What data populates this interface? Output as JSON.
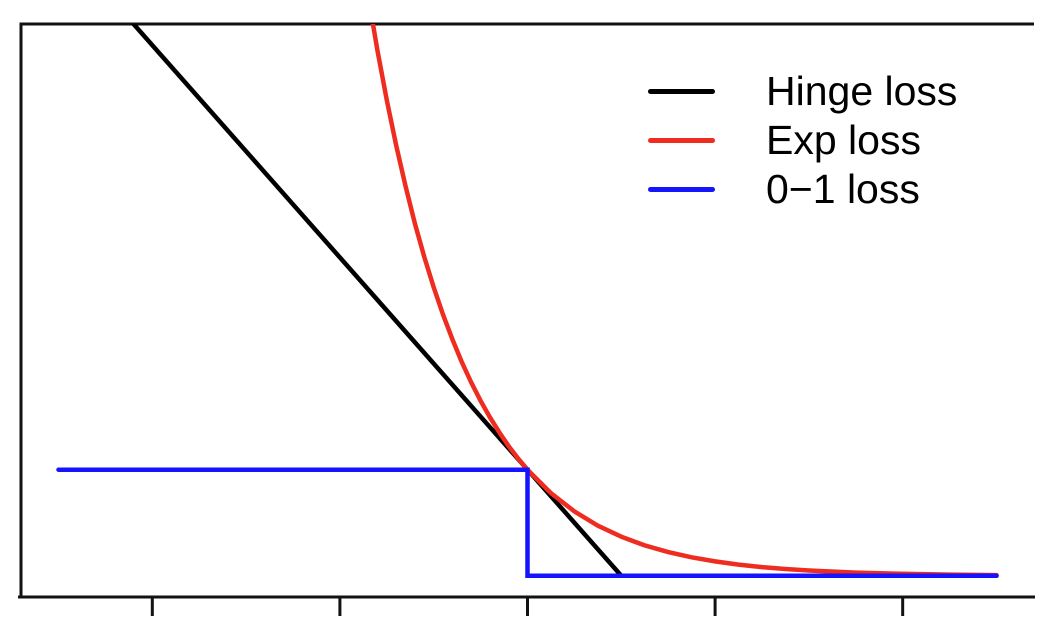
{
  "background_color": "#ffffff",
  "axis_color": "#121212",
  "chart_data": {
    "type": "line",
    "title": "",
    "xlabel": "",
    "ylabel": "",
    "xlim": [
      -5.4,
      5.4
    ],
    "ylim": [
      -0.2,
      5.2
    ],
    "x_ticks": [
      -4,
      -2,
      0,
      2,
      4
    ],
    "y_ticks": [],
    "grid": false,
    "axis_box": "open-right",
    "legend_position": "top-right",
    "series": [
      {
        "name": "Hinge loss",
        "color": "#000000",
        "formula": "max(0, 1 - x)",
        "points": [
          [
            -5,
            6
          ],
          [
            1,
            0
          ],
          [
            5,
            0
          ]
        ]
      },
      {
        "name": "Exp loss",
        "color": "#ee2d20",
        "formula": "exp(-x)",
        "points": [
          [
            -5,
            148.4132
          ],
          [
            -2,
            7.3891
          ],
          [
            -1.9,
            6.6859
          ],
          [
            -1.8,
            6.0496
          ],
          [
            -1.7,
            5.4739
          ],
          [
            -1.6,
            4.953
          ],
          [
            -1.5,
            4.4817
          ],
          [
            -1.4,
            4.0552
          ],
          [
            -1.3,
            3.6693
          ],
          [
            -1.2,
            3.3201
          ],
          [
            -1.1,
            3.0042
          ],
          [
            -1,
            2.7183
          ],
          [
            -0.9,
            2.4596
          ],
          [
            -0.8,
            2.2255
          ],
          [
            -0.7,
            2.0138
          ],
          [
            -0.6,
            1.8221
          ],
          [
            -0.5,
            1.6487
          ],
          [
            -0.4,
            1.4918
          ],
          [
            -0.3,
            1.3499
          ],
          [
            -0.2,
            1.2214
          ],
          [
            -0.1,
            1.1052
          ],
          [
            0,
            1
          ],
          [
            0.25,
            0.7788
          ],
          [
            0.5,
            0.6065
          ],
          [
            0.75,
            0.4724
          ],
          [
            1,
            0.3679
          ],
          [
            1.25,
            0.2865
          ],
          [
            1.5,
            0.2231
          ],
          [
            1.75,
            0.1738
          ],
          [
            2,
            0.1353
          ],
          [
            2.25,
            0.1054
          ],
          [
            2.5,
            0.0821
          ],
          [
            2.75,
            0.0639
          ],
          [
            3,
            0.0498
          ],
          [
            3.5,
            0.0302
          ],
          [
            4,
            0.0183
          ],
          [
            4.5,
            0.0111
          ],
          [
            5,
            0.0067
          ]
        ]
      },
      {
        "name": "0−1 loss",
        "color": "#1414ff",
        "formula": "1 if x < 0 else 0",
        "points": [
          [
            -5,
            1
          ],
          [
            0,
            1
          ],
          [
            0,
            0
          ],
          [
            5,
            0
          ]
        ]
      }
    ]
  }
}
